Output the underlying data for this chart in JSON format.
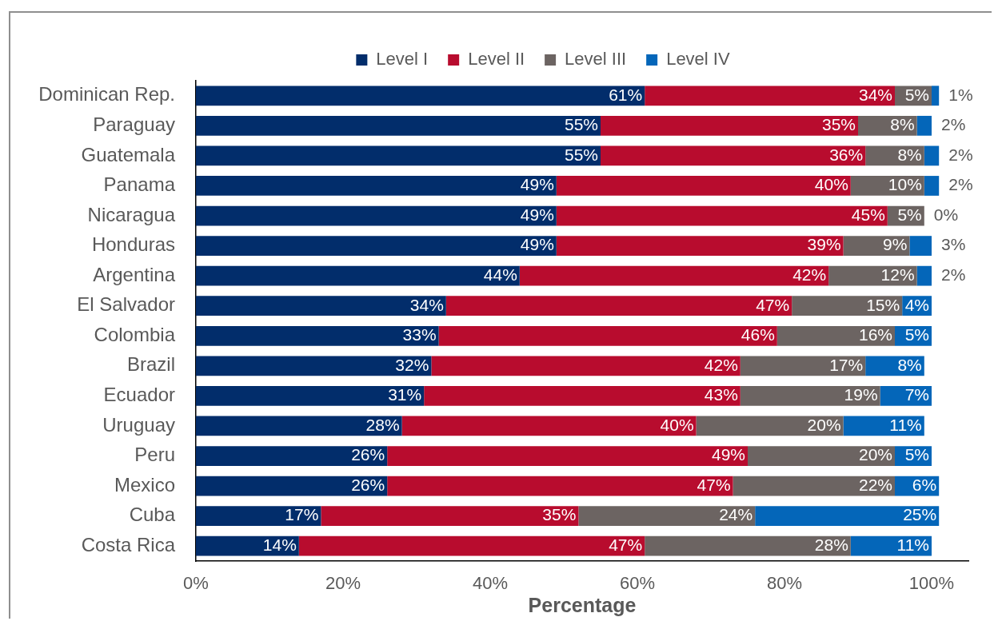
{
  "chart_data": {
    "type": "bar",
    "orientation": "horizontal",
    "stacked": true,
    "categories": [
      "Dominican Rep.",
      "Paraguay",
      "Guatemala",
      "Panama",
      "Nicaragua",
      "Honduras",
      "Argentina",
      "El Salvador",
      "Colombia",
      "Brazil",
      "Ecuador",
      "Uruguay",
      "Peru",
      "Mexico",
      "Cuba",
      "Costa Rica"
    ],
    "series": [
      {
        "name": "Level I",
        "color": "#022d6b",
        "values": [
          61,
          55,
          55,
          49,
          49,
          49,
          44,
          34,
          33,
          32,
          31,
          28,
          26,
          26,
          17,
          14
        ],
        "value_labels": [
          "61%",
          "55%",
          "55%",
          "49%",
          "49%",
          "49%",
          "44%",
          "34%",
          "33%",
          "32%",
          "31%",
          "28%",
          "26%",
          "26%",
          "17%",
          "14%"
        ]
      },
      {
        "name": "Level II",
        "color": "#b80c2e",
        "values": [
          34,
          35,
          36,
          40,
          45,
          39,
          42,
          47,
          46,
          42,
          43,
          40,
          49,
          47,
          35,
          47
        ],
        "value_labels": [
          "34%",
          "35%",
          "36%",
          "40%",
          "45%",
          "39%",
          "42%",
          "47%",
          "46%",
          "42%",
          "43%",
          "40%",
          "49%",
          "47%",
          "35%",
          "47%"
        ]
      },
      {
        "name": "Level III",
        "color": "#6c6462",
        "values": [
          5,
          8,
          8,
          10,
          5,
          9,
          12,
          15,
          16,
          17,
          19,
          20,
          20,
          22,
          24,
          28
        ],
        "value_labels": [
          "5%",
          "8%",
          "8%",
          "10%",
          "5%",
          "9%",
          "12%",
          "15%",
          "16%",
          "17%",
          "19%",
          "20%",
          "20%",
          "22%",
          "24%",
          "28%"
        ]
      },
      {
        "name": "Level IV",
        "color": "#0466b9",
        "values": [
          1,
          2,
          2,
          2,
          0,
          3,
          2,
          4,
          5,
          8,
          7,
          11,
          5,
          6,
          25,
          11
        ],
        "value_labels": [
          "1%",
          "2%",
          "2%",
          "2%",
          "0%",
          "3%",
          "2%",
          "4%",
          "5%",
          "8%",
          "7%",
          "11%",
          "5%",
          "6%",
          "25%",
          "11%"
        ]
      }
    ],
    "xlim": [
      0,
      105
    ],
    "xticks": [
      {
        "value": 0,
        "label": "0%"
      },
      {
        "value": 20,
        "label": "20%"
      },
      {
        "value": 40,
        "label": "40%"
      },
      {
        "value": 60,
        "label": "60%"
      },
      {
        "value": 80,
        "label": "80%"
      },
      {
        "value": 100,
        "label": "100%"
      }
    ],
    "xlabel": "Percentage",
    "grid": false,
    "legend": "top"
  }
}
